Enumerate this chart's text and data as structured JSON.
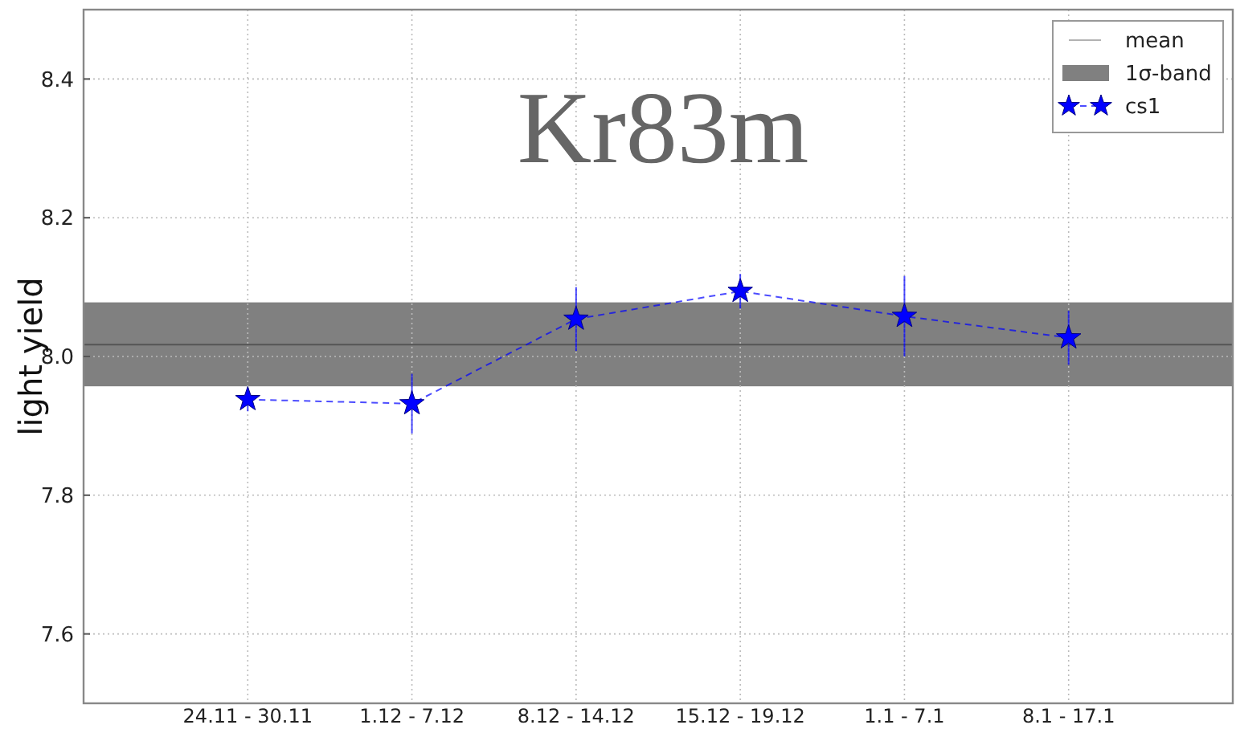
{
  "chart_data": {
    "type": "line",
    "title": "Kr83m",
    "ylabel": "light yield",
    "categories": [
      "24.11 - 30.11",
      "1.12 - 7.12",
      "8.12 - 14.12",
      "15.12 - 19.12",
      "1.1 - 7.1",
      "8.1 - 17.1"
    ],
    "series": [
      {
        "name": "cs1",
        "color": "#0000ff",
        "values": [
          7.938,
          7.932,
          8.054,
          8.094,
          8.058,
          8.027
        ],
        "errors": [
          0.017,
          0.043,
          0.046,
          0.025,
          0.058,
          0.039
        ]
      }
    ],
    "ylim": [
      7.5,
      8.5
    ],
    "yticks": [
      {
        "value": 7.6,
        "label": "7.6"
      },
      {
        "value": 7.8,
        "label": "7.8"
      },
      {
        "value": 8.0,
        "label": "8.0"
      },
      {
        "value": 8.2,
        "label": "8.2"
      },
      {
        "value": 8.4,
        "label": "8.4"
      }
    ],
    "ref_lines": [
      {
        "axis": "y",
        "value": 8.017,
        "label": "mean",
        "color": "#555555"
      }
    ],
    "bands": [
      {
        "axis": "y",
        "from": 7.957,
        "to": 8.078,
        "label": "1σ-band",
        "color": "#808080"
      }
    ],
    "grid": true,
    "legend": "top right",
    "marker": "star",
    "line_style": "dashed"
  }
}
